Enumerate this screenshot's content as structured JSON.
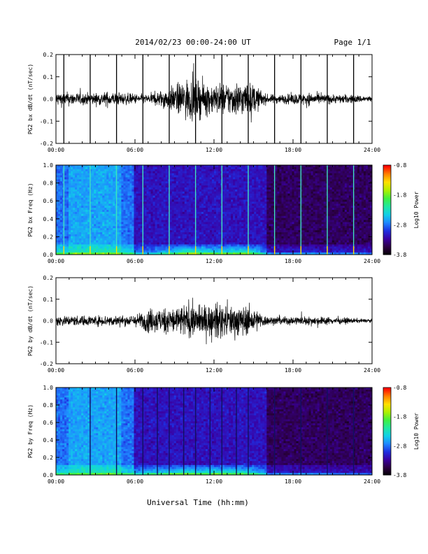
{
  "header": {
    "date_range": "2014/02/23  00:00-24:00 UT",
    "page": "Page 1/1"
  },
  "x_axis": {
    "label": "Universal Time (hh:mm)",
    "ticks": [
      "00:00",
      "06:00",
      "12:00",
      "18:00",
      "24:00"
    ]
  },
  "colorbar": {
    "title": "Log10 Power",
    "ticks": [
      "-0.8",
      "-1.8",
      "-2.8",
      "-3.8"
    ],
    "range": [
      -3.8,
      -0.8
    ],
    "colors": [
      "#000000",
      "#2b0040",
      "#3a00a0",
      "#1f2ee0",
      "#1f88ff",
      "#10d0e8",
      "#20e8a0",
      "#40f040",
      "#b0f000",
      "#ffe000",
      "#ff8000",
      "#ff0000"
    ]
  },
  "chart_data": [
    {
      "type": "line",
      "ylabel": "PG2 bx dB/dt (nT/sec)",
      "xlim_hours": [
        0,
        24
      ],
      "ylim": [
        -0.2,
        0.2
      ],
      "yticks": [
        "0.2",
        "0.1",
        "0.0",
        "-0.1",
        "-0.2"
      ],
      "envelope_hours": [
        0,
        1,
        2,
        3,
        4,
        5,
        6,
        7,
        8,
        9,
        10,
        11,
        12,
        13,
        14,
        15,
        16,
        17,
        18,
        19,
        20,
        21,
        22,
        23,
        24
      ],
      "envelope_amplitude": [
        0.05,
        0.045,
        0.04,
        0.04,
        0.05,
        0.04,
        0.035,
        0.03,
        0.06,
        0.09,
        0.14,
        0.12,
        0.1,
        0.11,
        0.12,
        0.1,
        0.03,
        0.03,
        0.035,
        0.045,
        0.035,
        0.03,
        0.03,
        0.025,
        0.02
      ],
      "spike_hours": [
        0.6,
        2.6,
        4.6,
        6.6,
        8.6,
        10.6,
        12.6,
        14.6,
        16.6,
        18.6,
        20.6,
        22.6
      ]
    },
    {
      "type": "heatmap",
      "ylabel": "PG2 bx Freq (Hz)",
      "xlim_hours": [
        0,
        24
      ],
      "ylim": [
        0.0,
        1.0
      ],
      "yticks": [
        "1.0",
        "0.8",
        "0.6",
        "0.4",
        "0.2",
        "0.0"
      ],
      "value_label": "Log10 Power",
      "spike_hours": [
        0.6,
        2.6,
        4.6,
        6.6,
        8.6,
        10.6,
        12.6,
        14.6,
        16.6,
        18.6,
        20.6,
        22.6
      ]
    },
    {
      "type": "line",
      "ylabel": "PG2 by dB/dt (nT/sec)",
      "xlim_hours": [
        0,
        24
      ],
      "ylim": [
        -0.2,
        0.2
      ],
      "yticks": [
        "0.2",
        "0.1",
        "0.0",
        "-0.1",
        "-0.2"
      ],
      "envelope_hours": [
        0,
        1,
        2,
        3,
        4,
        5,
        6,
        7,
        8,
        9,
        10,
        11,
        12,
        13,
        14,
        15,
        16,
        17,
        18,
        19,
        20,
        21,
        22,
        23,
        24
      ],
      "envelope_amplitude": [
        0.04,
        0.035,
        0.035,
        0.035,
        0.04,
        0.035,
        0.04,
        0.08,
        0.09,
        0.1,
        0.12,
        0.1,
        0.12,
        0.11,
        0.11,
        0.09,
        0.03,
        0.03,
        0.03,
        0.03,
        0.03,
        0.025,
        0.02,
        0.015,
        0.01
      ],
      "spike_hours": []
    },
    {
      "type": "heatmap",
      "ylabel": "PG2 by Freq (Hz)",
      "xlim_hours": [
        0,
        24
      ],
      "ylim": [
        0.0,
        1.0
      ],
      "yticks": [
        "1.0",
        "0.8",
        "0.6",
        "0.4",
        "0.2",
        "0.0"
      ],
      "value_label": "Log10 Power",
      "spike_hours": [
        2.6,
        4.6,
        6.6,
        7.7,
        8.6,
        9.7,
        10.6,
        11.7,
        12.6,
        13.7,
        14.6,
        16.6,
        18.6,
        20.6,
        22.6
      ]
    }
  ]
}
